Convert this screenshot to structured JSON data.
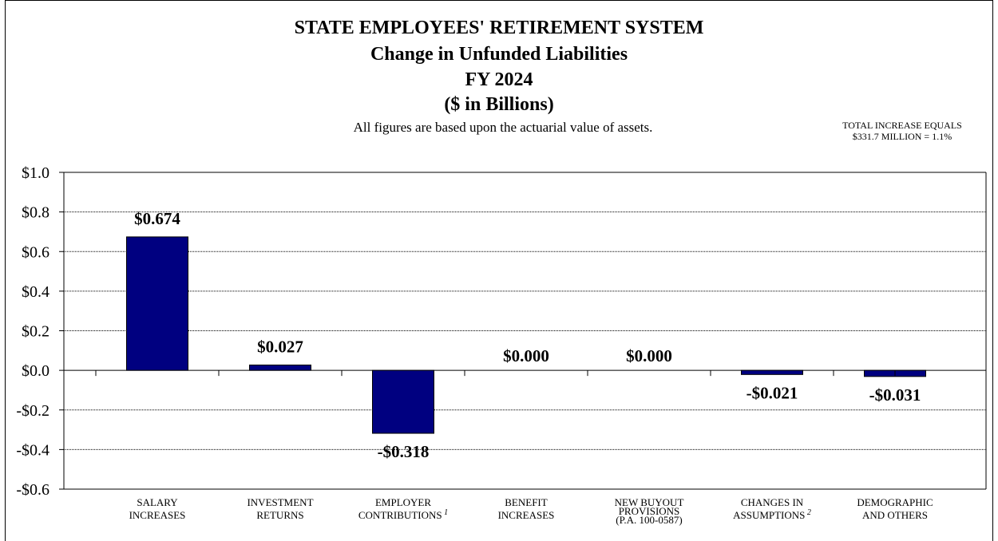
{
  "header": {
    "title_line1": "STATE EMPLOYEES' RETIREMENT SYSTEM",
    "title_line2": "Change in Unfunded Liabilities",
    "title_line3": "FY 2024",
    "title_line4": "($ in Billions)",
    "subtitle": "All figures are based upon the actuarial value of assets.",
    "note_line1": "TOTAL INCREASE EQUALS",
    "note_line2": "$331.7 MILLION = 1.1%"
  },
  "colors": {
    "bar": "#000080",
    "grid": "#000000",
    "background": "#ffffff"
  },
  "chart_data": {
    "type": "bar",
    "categories": [
      {
        "lines": [
          "SALARY",
          "INCREASES"
        ],
        "sup": ""
      },
      {
        "lines": [
          "INVESTMENT",
          "RETURNS"
        ],
        "sup": ""
      },
      {
        "lines": [
          "EMPLOYER",
          "CONTRIBUTIONS"
        ],
        "sup": "1"
      },
      {
        "lines": [
          "BENEFIT",
          "INCREASES"
        ],
        "sup": ""
      },
      {
        "lines": [
          "NEW BUYOUT",
          "PROVISIONS",
          "(P.A. 100-0587)"
        ],
        "sup": ""
      },
      {
        "lines": [
          "CHANGES IN",
          "ASSUMPTIONS"
        ],
        "sup": "2"
      },
      {
        "lines": [
          "DEMOGRAPHIC",
          "AND OTHERS"
        ],
        "sup": ""
      }
    ],
    "values": [
      0.674,
      0.027,
      -0.318,
      0.0,
      0.0,
      -0.021,
      -0.031
    ],
    "data_labels": [
      "$0.674",
      "$0.027",
      "-$0.318",
      "$0.000",
      "$0.000",
      "-$0.021",
      "-$0.031"
    ],
    "yticks": [
      1.0,
      0.8,
      0.6,
      0.4,
      0.2,
      0.0,
      -0.2,
      -0.4,
      -0.6
    ],
    "ytick_labels": [
      "$1.0",
      "$0.8",
      "$0.6",
      "$0.4",
      "$0.2",
      "$0.0",
      "-$0.2",
      "-$0.4",
      "-$0.6"
    ],
    "ylim": [
      -0.6,
      1.0
    ],
    "grid": true,
    "legend": "none"
  }
}
